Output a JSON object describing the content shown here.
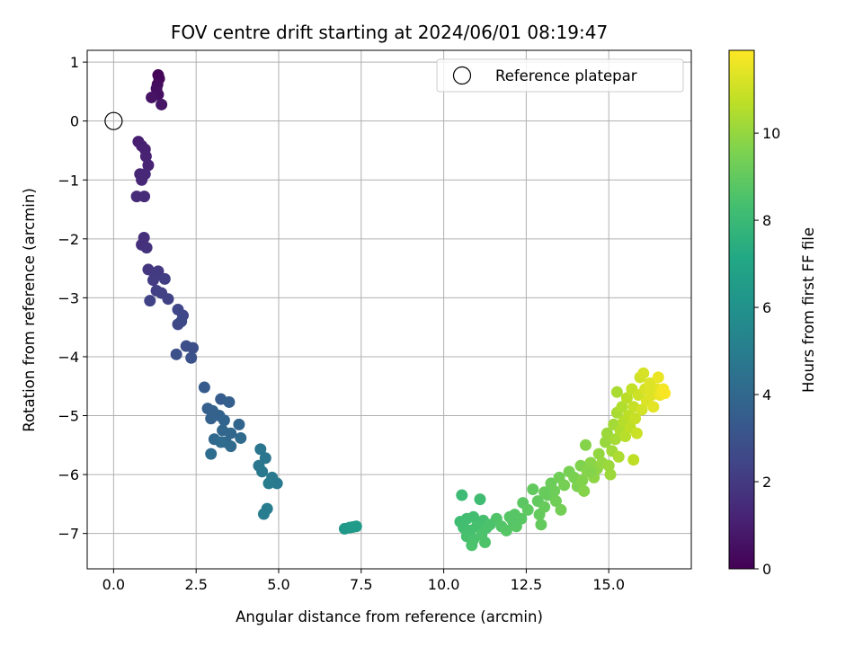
{
  "chart_data": {
    "type": "scatter",
    "title": "FOV centre drift starting at 2024/06/01 08:19:47",
    "xlabel": "Angular distance from reference (arcmin)",
    "ylabel": "Rotation from reference (arcmin)",
    "xlim": [
      -0.8,
      17.5
    ],
    "ylim": [
      -7.6,
      1.2
    ],
    "xticks": [
      0.0,
      2.5,
      5.0,
      7.5,
      10.0,
      12.5,
      15.0
    ],
    "xtick_labels": [
      "0.0",
      "2.5",
      "5.0",
      "7.5",
      "10.0",
      "12.5",
      "15.0"
    ],
    "yticks": [
      1,
      0,
      -1,
      -2,
      -3,
      -4,
      -5,
      -6,
      -7
    ],
    "ytick_labels": [
      "1",
      "0",
      "−1",
      "−2",
      "−3",
      "−4",
      "−5",
      "−6",
      "−7"
    ],
    "grid": true,
    "legend": {
      "position": "top-right",
      "entries": [
        "Reference platepar"
      ]
    },
    "reference_point": {
      "x": 0.0,
      "y": 0.0,
      "label": "Reference platepar"
    },
    "colorbar": {
      "label": "Hours from first FF file",
      "colormap": "viridis",
      "range": [
        0,
        11.9
      ],
      "ticks": [
        0,
        2,
        4,
        6,
        8,
        10
      ],
      "tick_labels": [
        "0",
        "2",
        "4",
        "6",
        "8",
        "10"
      ]
    },
    "series": [
      {
        "points": [
          {
            "x": 1.35,
            "y": 0.78,
            "t": 0.1
          },
          {
            "x": 1.38,
            "y": 0.72,
            "t": 0.2
          },
          {
            "x": 1.33,
            "y": 0.62,
            "t": 0.3
          },
          {
            "x": 1.3,
            "y": 0.55,
            "t": 0.4
          },
          {
            "x": 1.35,
            "y": 0.45,
            "t": 0.5
          },
          {
            "x": 1.15,
            "y": 0.4,
            "t": 0.6
          },
          {
            "x": 1.45,
            "y": 0.28,
            "t": 0.7
          },
          {
            "x": 0.75,
            "y": -0.35,
            "t": 1.0
          },
          {
            "x": 0.85,
            "y": -0.42,
            "t": 1.05
          },
          {
            "x": 0.95,
            "y": -0.48,
            "t": 1.1
          },
          {
            "x": 0.98,
            "y": -0.6,
            "t": 1.15
          },
          {
            "x": 1.05,
            "y": -0.75,
            "t": 1.2
          },
          {
            "x": 0.8,
            "y": -0.9,
            "t": 1.25
          },
          {
            "x": 0.95,
            "y": -0.9,
            "t": 1.3
          },
          {
            "x": 0.85,
            "y": -1.0,
            "t": 1.35
          },
          {
            "x": 0.7,
            "y": -1.28,
            "t": 1.4
          },
          {
            "x": 0.93,
            "y": -1.28,
            "t": 1.45
          },
          {
            "x": 0.92,
            "y": -1.98,
            "t": 1.6
          },
          {
            "x": 0.85,
            "y": -2.1,
            "t": 1.65
          },
          {
            "x": 1.0,
            "y": -2.15,
            "t": 1.7
          },
          {
            "x": 1.05,
            "y": -2.52,
            "t": 1.9
          },
          {
            "x": 1.35,
            "y": -2.55,
            "t": 2.0
          },
          {
            "x": 1.25,
            "y": -2.62,
            "t": 2.05
          },
          {
            "x": 1.2,
            "y": -2.7,
            "t": 2.1
          },
          {
            "x": 1.55,
            "y": -2.68,
            "t": 2.15
          },
          {
            "x": 1.3,
            "y": -2.88,
            "t": 2.2
          },
          {
            "x": 1.45,
            "y": -2.92,
            "t": 2.25
          },
          {
            "x": 1.65,
            "y": -3.02,
            "t": 2.3
          },
          {
            "x": 1.1,
            "y": -3.05,
            "t": 2.35
          },
          {
            "x": 1.95,
            "y": -3.2,
            "t": 2.5
          },
          {
            "x": 2.1,
            "y": -3.3,
            "t": 2.55
          },
          {
            "x": 1.95,
            "y": -3.45,
            "t": 2.6
          },
          {
            "x": 2.05,
            "y": -3.4,
            "t": 2.65
          },
          {
            "x": 2.2,
            "y": -3.82,
            "t": 2.8
          },
          {
            "x": 2.4,
            "y": -3.85,
            "t": 2.85
          },
          {
            "x": 1.9,
            "y": -3.96,
            "t": 2.9
          },
          {
            "x": 2.35,
            "y": -4.02,
            "t": 2.95
          },
          {
            "x": 2.75,
            "y": -4.52,
            "t": 3.4
          },
          {
            "x": 3.25,
            "y": -4.72,
            "t": 3.5
          },
          {
            "x": 3.5,
            "y": -4.77,
            "t": 3.55
          },
          {
            "x": 2.85,
            "y": -4.88,
            "t": 3.6
          },
          {
            "x": 3.0,
            "y": -4.92,
            "t": 3.65
          },
          {
            "x": 2.95,
            "y": -5.05,
            "t": 3.7
          },
          {
            "x": 3.2,
            "y": -5.0,
            "t": 3.75
          },
          {
            "x": 3.35,
            "y": -5.08,
            "t": 3.8
          },
          {
            "x": 3.8,
            "y": -5.15,
            "t": 3.85
          },
          {
            "x": 3.3,
            "y": -5.25,
            "t": 3.9
          },
          {
            "x": 3.55,
            "y": -5.3,
            "t": 3.95
          },
          {
            "x": 3.05,
            "y": -5.4,
            "t": 4.0
          },
          {
            "x": 3.4,
            "y": -5.45,
            "t": 4.05
          },
          {
            "x": 3.85,
            "y": -5.38,
            "t": 4.1
          },
          {
            "x": 3.55,
            "y": -5.52,
            "t": 4.15
          },
          {
            "x": 3.25,
            "y": -5.45,
            "t": 4.2
          },
          {
            "x": 2.95,
            "y": -5.65,
            "t": 4.25
          },
          {
            "x": 4.45,
            "y": -5.57,
            "t": 4.6
          },
          {
            "x": 4.6,
            "y": -5.72,
            "t": 4.65
          },
          {
            "x": 4.4,
            "y": -5.85,
            "t": 4.7
          },
          {
            "x": 4.5,
            "y": -5.95,
            "t": 4.75
          },
          {
            "x": 4.8,
            "y": -6.05,
            "t": 4.8
          },
          {
            "x": 4.95,
            "y": -6.15,
            "t": 4.85
          },
          {
            "x": 4.7,
            "y": -6.15,
            "t": 4.9
          },
          {
            "x": 4.65,
            "y": -6.58,
            "t": 5.0
          },
          {
            "x": 4.55,
            "y": -6.67,
            "t": 5.05
          },
          {
            "x": 7.0,
            "y": -6.92,
            "t": 6.3
          },
          {
            "x": 7.15,
            "y": -6.9,
            "t": 6.35
          },
          {
            "x": 7.25,
            "y": -6.89,
            "t": 6.4
          },
          {
            "x": 7.35,
            "y": -6.88,
            "t": 6.45
          },
          {
            "x": 10.55,
            "y": -6.35,
            "t": 8.1
          },
          {
            "x": 11.1,
            "y": -6.42,
            "t": 8.2
          },
          {
            "x": 10.5,
            "y": -6.8,
            "t": 8.2
          },
          {
            "x": 10.7,
            "y": -6.75,
            "t": 8.25
          },
          {
            "x": 10.9,
            "y": -6.72,
            "t": 8.3
          },
          {
            "x": 11.2,
            "y": -6.78,
            "t": 8.35
          },
          {
            "x": 10.6,
            "y": -6.9,
            "t": 8.3
          },
          {
            "x": 10.8,
            "y": -6.95,
            "t": 8.35
          },
          {
            "x": 11.0,
            "y": -6.88,
            "t": 8.4
          },
          {
            "x": 11.3,
            "y": -6.9,
            "t": 8.45
          },
          {
            "x": 10.7,
            "y": -7.05,
            "t": 8.4
          },
          {
            "x": 10.9,
            "y": -7.1,
            "t": 8.45
          },
          {
            "x": 11.15,
            "y": -7.02,
            "t": 8.5
          },
          {
            "x": 10.85,
            "y": -7.2,
            "t": 8.5
          },
          {
            "x": 11.25,
            "y": -7.15,
            "t": 8.55
          },
          {
            "x": 11.6,
            "y": -6.75,
            "t": 8.6
          },
          {
            "x": 11.75,
            "y": -6.88,
            "t": 8.65
          },
          {
            "x": 11.9,
            "y": -6.95,
            "t": 8.7
          },
          {
            "x": 12.0,
            "y": -6.72,
            "t": 8.7
          },
          {
            "x": 12.15,
            "y": -6.68,
            "t": 8.75
          },
          {
            "x": 12.2,
            "y": -6.88,
            "t": 8.8
          },
          {
            "x": 12.35,
            "y": -6.75,
            "t": 8.8
          },
          {
            "x": 12.4,
            "y": -6.48,
            "t": 8.85
          },
          {
            "x": 12.55,
            "y": -6.6,
            "t": 8.9
          },
          {
            "x": 12.7,
            "y": -6.25,
            "t": 9.0
          },
          {
            "x": 12.85,
            "y": -6.45,
            "t": 9.0
          },
          {
            "x": 12.9,
            "y": -6.68,
            "t": 9.05
          },
          {
            "x": 12.95,
            "y": -6.85,
            "t": 9.05
          },
          {
            "x": 13.05,
            "y": -6.55,
            "t": 9.1
          },
          {
            "x": 13.15,
            "y": -6.35,
            "t": 9.15
          },
          {
            "x": 13.25,
            "y": -6.15,
            "t": 9.2
          },
          {
            "x": 13.35,
            "y": -6.28,
            "t": 9.25
          },
          {
            "x": 13.4,
            "y": -6.45,
            "t": 9.3
          },
          {
            "x": 13.5,
            "y": -6.05,
            "t": 9.3
          },
          {
            "x": 13.55,
            "y": -6.6,
            "t": 9.35
          },
          {
            "x": 13.65,
            "y": -6.18,
            "t": 9.4
          },
          {
            "x": 13.8,
            "y": -5.95,
            "t": 9.45
          },
          {
            "x": 13.95,
            "y": -6.05,
            "t": 9.5
          },
          {
            "x": 14.05,
            "y": -6.2,
            "t": 9.55
          },
          {
            "x": 14.15,
            "y": -5.85,
            "t": 9.6
          },
          {
            "x": 14.2,
            "y": -6.1,
            "t": 9.65
          },
          {
            "x": 14.25,
            "y": -6.28,
            "t": 9.7
          },
          {
            "x": 14.3,
            "y": -5.5,
            "t": 9.7
          },
          {
            "x": 14.35,
            "y": -5.95,
            "t": 9.75
          },
          {
            "x": 14.45,
            "y": -5.8,
            "t": 9.8
          },
          {
            "x": 14.55,
            "y": -6.05,
            "t": 9.85
          },
          {
            "x": 14.65,
            "y": -5.9,
            "t": 9.9
          },
          {
            "x": 14.7,
            "y": -5.65,
            "t": 9.95
          },
          {
            "x": 14.8,
            "y": -5.8,
            "t": 10.0
          },
          {
            "x": 14.9,
            "y": -5.45,
            "t": 10.05
          },
          {
            "x": 14.95,
            "y": -5.3,
            "t": 10.1
          },
          {
            "x": 15.0,
            "y": -5.85,
            "t": 10.1
          },
          {
            "x": 15.05,
            "y": -6.0,
            "t": 10.15
          },
          {
            "x": 15.1,
            "y": -5.6,
            "t": 10.2
          },
          {
            "x": 15.15,
            "y": -5.15,
            "t": 10.25
          },
          {
            "x": 15.2,
            "y": -5.4,
            "t": 10.3
          },
          {
            "x": 15.25,
            "y": -4.95,
            "t": 10.35
          },
          {
            "x": 15.25,
            "y": -4.6,
            "t": 10.35
          },
          {
            "x": 15.3,
            "y": -5.7,
            "t": 10.4
          },
          {
            "x": 15.35,
            "y": -5.25,
            "t": 10.45
          },
          {
            "x": 15.4,
            "y": -4.85,
            "t": 10.5
          },
          {
            "x": 15.45,
            "y": -5.1,
            "t": 10.55
          },
          {
            "x": 15.5,
            "y": -5.35,
            "t": 10.6
          },
          {
            "x": 15.55,
            "y": -4.7,
            "t": 10.65
          },
          {
            "x": 15.6,
            "y": -5.0,
            "t": 10.7
          },
          {
            "x": 15.65,
            "y": -5.2,
            "t": 10.75
          },
          {
            "x": 15.7,
            "y": -4.55,
            "t": 10.8
          },
          {
            "x": 15.75,
            "y": -4.85,
            "t": 10.85
          },
          {
            "x": 15.8,
            "y": -5.05,
            "t": 10.9
          },
          {
            "x": 15.85,
            "y": -5.3,
            "t": 10.95
          },
          {
            "x": 15.9,
            "y": -4.65,
            "t": 11.0
          },
          {
            "x": 15.95,
            "y": -4.35,
            "t": 11.05
          },
          {
            "x": 16.0,
            "y": -4.9,
            "t": 11.1
          },
          {
            "x": 16.05,
            "y": -4.28,
            "t": 11.15
          },
          {
            "x": 16.1,
            "y": -4.55,
            "t": 11.2
          },
          {
            "x": 16.15,
            "y": -4.75,
            "t": 11.25
          },
          {
            "x": 16.25,
            "y": -4.45,
            "t": 11.3
          },
          {
            "x": 16.3,
            "y": -4.65,
            "t": 11.35
          },
          {
            "x": 16.35,
            "y": -4.85,
            "t": 11.4
          },
          {
            "x": 16.45,
            "y": -4.55,
            "t": 11.5
          },
          {
            "x": 16.5,
            "y": -4.35,
            "t": 11.55
          },
          {
            "x": 16.55,
            "y": -4.65,
            "t": 11.6
          },
          {
            "x": 16.65,
            "y": -4.55,
            "t": 11.7
          },
          {
            "x": 16.7,
            "y": -4.62,
            "t": 11.8
          },
          {
            "x": 16.25,
            "y": -4.55,
            "t": 11.3
          },
          {
            "x": 14.45,
            "y": -5.95,
            "t": 9.7
          },
          {
            "x": 12.1,
            "y": -6.8,
            "t": 8.75
          },
          {
            "x": 11.4,
            "y": -6.85,
            "t": 8.5
          },
          {
            "x": 13.05,
            "y": -6.3,
            "t": 9.1
          },
          {
            "x": 15.75,
            "y": -5.75,
            "t": 10.7
          }
        ]
      }
    ]
  }
}
